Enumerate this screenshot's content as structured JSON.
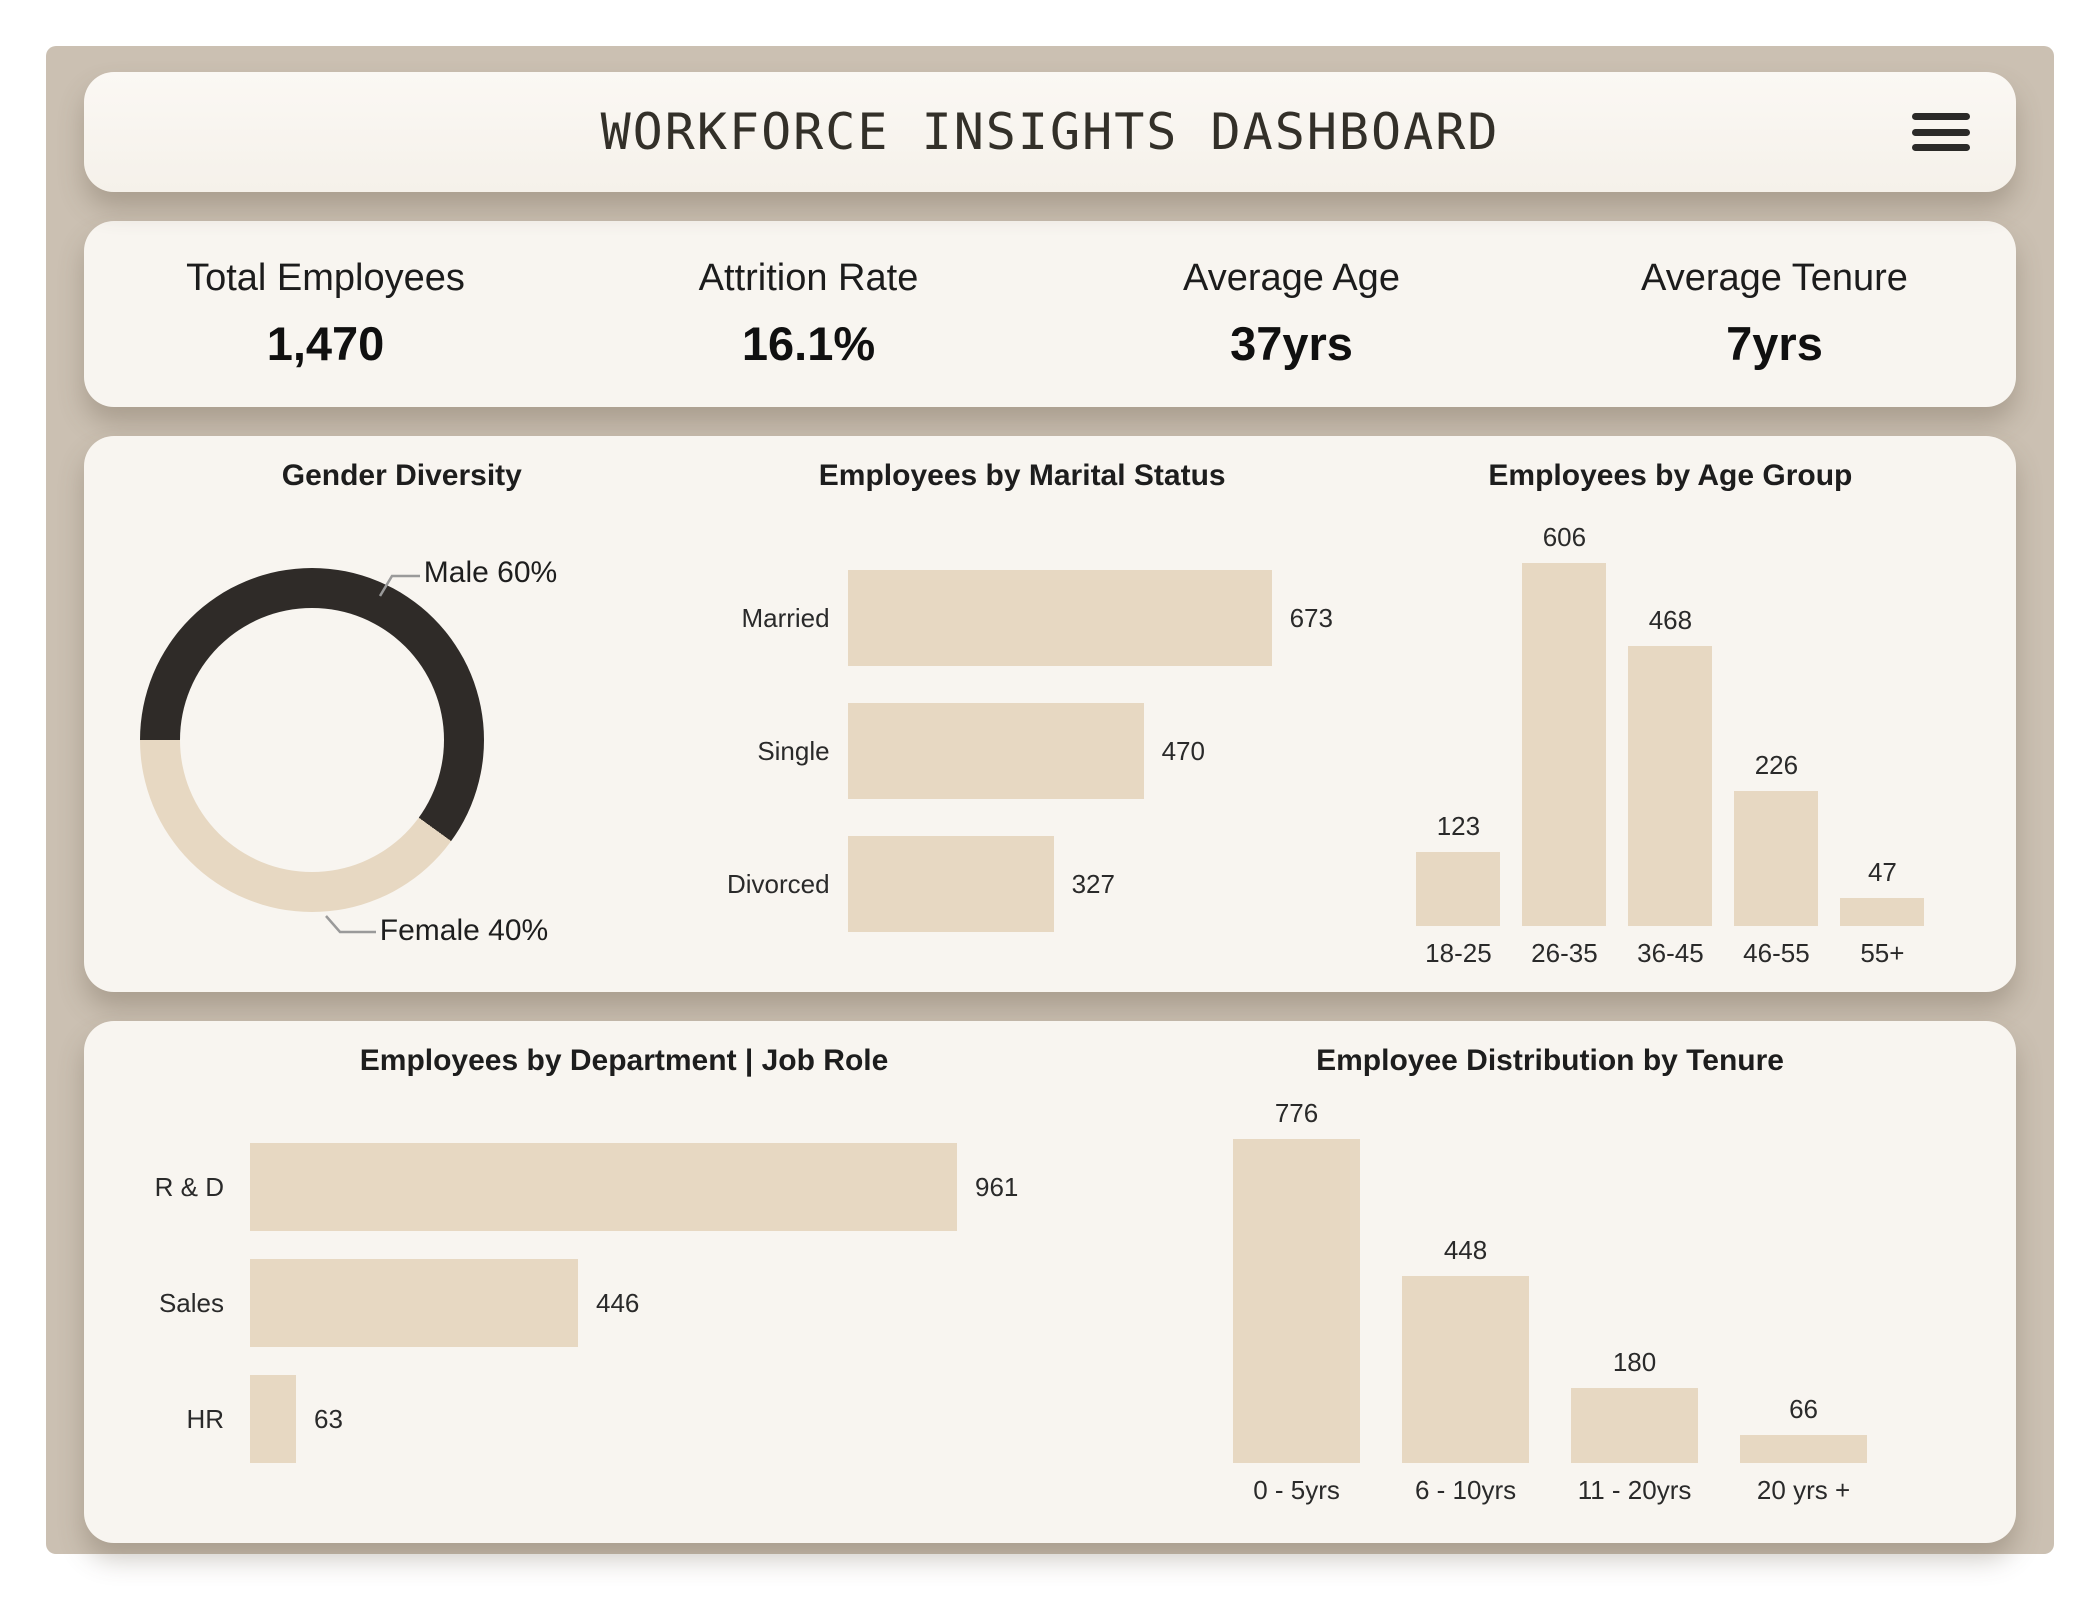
{
  "header": {
    "title": "WORKFORCE INSIGHTS DASHBOARD"
  },
  "kpis": [
    {
      "label": "Total Employees",
      "value": "1,470"
    },
    {
      "label": "Attrition Rate",
      "value": "16.1%"
    },
    {
      "label": "Average Age",
      "value": "37yrs"
    },
    {
      "label": "Average Tenure",
      "value": "7yrs"
    }
  ],
  "colors": {
    "page_background": "#ffffff",
    "canvas_tan": "#cbc0b2",
    "card_cream": "#f8f5f0",
    "bar_beige": "#e7d8c2",
    "donut_dark": "#2f2b28",
    "text_dark": "#1d1d1d"
  },
  "chart_data": [
    {
      "type": "pie",
      "donut": true,
      "title": "Gender Diversity",
      "labels": [
        "Male",
        "Female"
      ],
      "values": [
        60,
        40
      ],
      "unit": "%",
      "slice_colors": [
        "#2f2b28",
        "#e7d8c2"
      ],
      "callouts": [
        "Male 60%",
        "Female 40%"
      ]
    },
    {
      "type": "bar",
      "orientation": "horizontal",
      "title": "Employees by Marital Status",
      "categories": [
        "Married",
        "Single",
        "Divorced"
      ],
      "values": [
        673,
        470,
        327
      ],
      "xlim": [
        0,
        673
      ],
      "grid": false,
      "legend": "none"
    },
    {
      "type": "bar",
      "orientation": "vertical",
      "title": "Employees by Age Group",
      "categories": [
        "18-25",
        "26-35",
        "36-45",
        "46-55",
        "55+"
      ],
      "values": [
        123,
        606,
        468,
        226,
        47
      ],
      "ylim": [
        0,
        606
      ],
      "grid": false,
      "legend": "none"
    },
    {
      "type": "bar",
      "orientation": "horizontal",
      "title": "Employees by Department | Job Role",
      "categories": [
        "R & D",
        "Sales",
        "HR"
      ],
      "values": [
        961,
        446,
        63
      ],
      "xlim": [
        0,
        961
      ],
      "grid": false,
      "legend": "none"
    },
    {
      "type": "bar",
      "orientation": "vertical",
      "title": "Employee Distribution by Tenure",
      "categories": [
        "0 - 5yrs",
        "6 - 10yrs",
        "11 - 20yrs",
        "20 yrs +"
      ],
      "values": [
        776,
        448,
        180,
        66
      ],
      "ylim": [
        0,
        776
      ],
      "grid": false,
      "legend": "none"
    }
  ]
}
